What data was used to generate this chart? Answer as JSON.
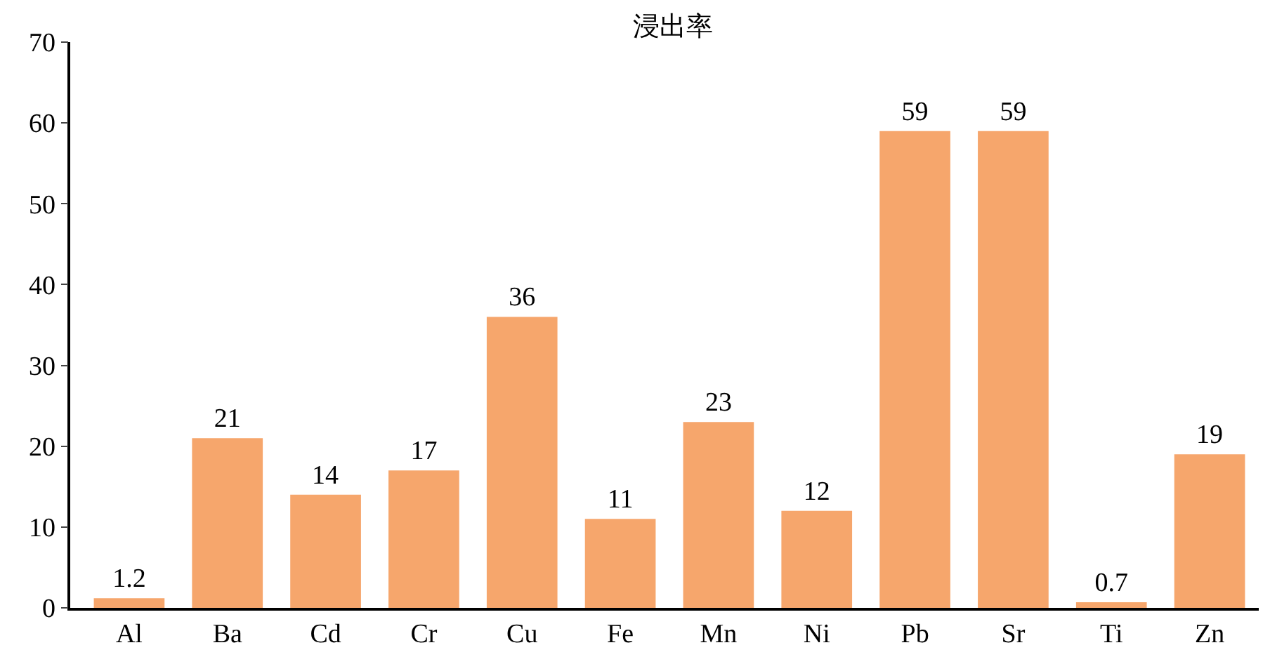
{
  "chart_data": {
    "type": "bar",
    "title": "浸出率",
    "categories": [
      "Al",
      "Ba",
      "Cd",
      "Cr",
      "Cu",
      "Fe",
      "Mn",
      "Ni",
      "Pb",
      "Sr",
      "Ti",
      "Zn"
    ],
    "values": [
      1.2,
      21,
      14,
      17,
      36,
      11,
      23,
      12,
      59,
      59,
      0.7,
      19
    ],
    "color": "#f6a66c",
    "ylim": [
      0,
      70
    ],
    "yticks": [
      0,
      10,
      20,
      30,
      40,
      50,
      60,
      70
    ],
    "data_labels": true
  }
}
